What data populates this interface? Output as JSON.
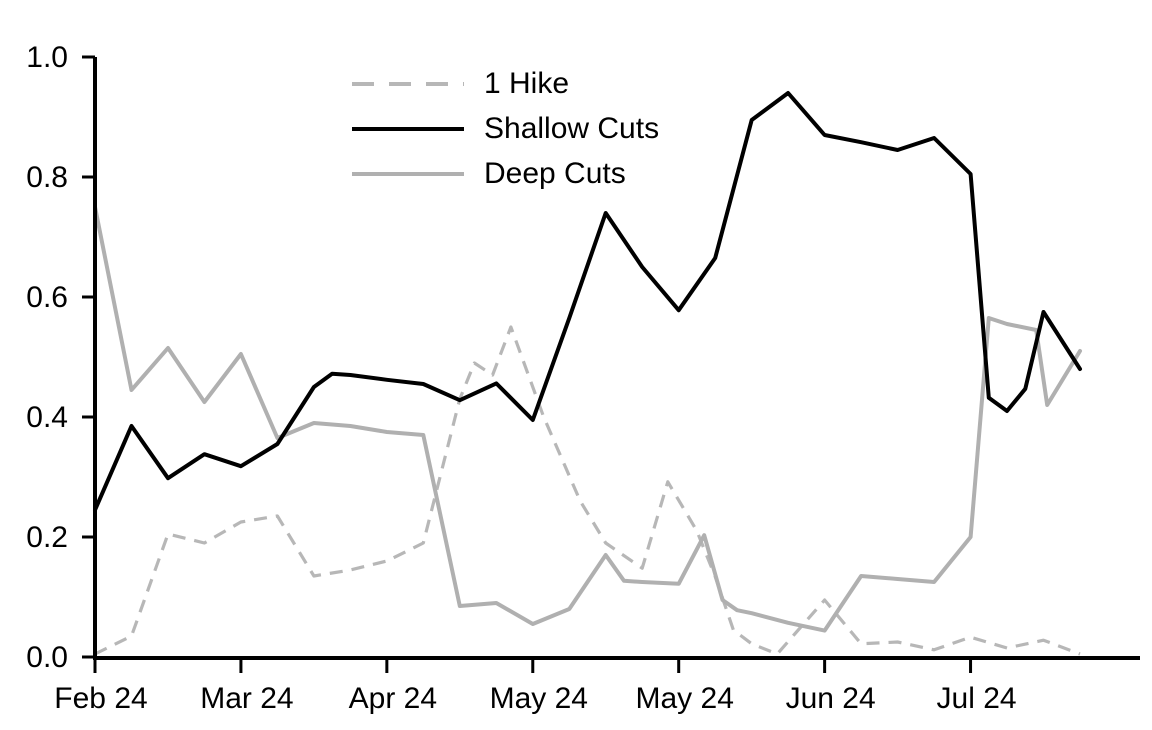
{
  "chart_data": {
    "type": "line",
    "title": "",
    "xlabel": "",
    "ylabel": "",
    "grid": false,
    "legend_position": "top-left-inside",
    "x_unit": "weeks since first observation (Feb 2024 - Aug 2024)",
    "xlim": [
      0,
      27
    ],
    "ylim": [
      0.0,
      1.0
    ],
    "y_ticks": [
      {
        "value": 0.0,
        "label": "0.0"
      },
      {
        "value": 0.2,
        "label": "0.2"
      },
      {
        "value": 0.4,
        "label": "0.4"
      },
      {
        "value": 0.6,
        "label": "0.6"
      },
      {
        "value": 0.8,
        "label": "0.8"
      },
      {
        "value": 1.0,
        "label": "1.0"
      }
    ],
    "x_ticks": [
      {
        "pos": 0,
        "label": "Feb 24"
      },
      {
        "pos": 4,
        "label": "Mar 24"
      },
      {
        "pos": 8,
        "label": "Apr 24"
      },
      {
        "pos": 12,
        "label": "May 24"
      },
      {
        "pos": 16,
        "label": "May 24"
      },
      {
        "pos": 20,
        "label": "Jun 24"
      },
      {
        "pos": 24,
        "label": "Jul 24"
      }
    ],
    "series": [
      {
        "name": "1 Hike",
        "style": "dashed",
        "color": "#b7b7b7",
        "points": [
          [
            0,
            0.005
          ],
          [
            1,
            0.035
          ],
          [
            2,
            0.205
          ],
          [
            3,
            0.19
          ],
          [
            4,
            0.225
          ],
          [
            5,
            0.235
          ],
          [
            6,
            0.135
          ],
          [
            7,
            0.145
          ],
          [
            8,
            0.16
          ],
          [
            9,
            0.19
          ],
          [
            10,
            0.43
          ],
          [
            10.4,
            0.49
          ],
          [
            10.9,
            0.47
          ],
          [
            11.4,
            0.55
          ],
          [
            12.3,
            0.4
          ],
          [
            13.3,
            0.26
          ],
          [
            14,
            0.19
          ],
          [
            15,
            0.148
          ],
          [
            15.7,
            0.292
          ],
          [
            16.5,
            0.21
          ],
          [
            17,
            0.134
          ],
          [
            17.5,
            0.045
          ],
          [
            18,
            0.022
          ],
          [
            18.7,
            0.005
          ],
          [
            20,
            0.095
          ],
          [
            21,
            0.022
          ],
          [
            22,
            0.025
          ],
          [
            23,
            0.012
          ],
          [
            24,
            0.033
          ],
          [
            25,
            0.015
          ],
          [
            26,
            0.028
          ],
          [
            27,
            0.005
          ]
        ]
      },
      {
        "name": "Shallow Cuts",
        "style": "solid",
        "color": "#000000",
        "points": [
          [
            0,
            0.245
          ],
          [
            1,
            0.385
          ],
          [
            2,
            0.298
          ],
          [
            3,
            0.338
          ],
          [
            4,
            0.318
          ],
          [
            5,
            0.355
          ],
          [
            6,
            0.45
          ],
          [
            6.5,
            0.472
          ],
          [
            7,
            0.47
          ],
          [
            8,
            0.462
          ],
          [
            9,
            0.455
          ],
          [
            10,
            0.428
          ],
          [
            11,
            0.456
          ],
          [
            12,
            0.395
          ],
          [
            13,
            0.565
          ],
          [
            14,
            0.74
          ],
          [
            15,
            0.65
          ],
          [
            16,
            0.578
          ],
          [
            17,
            0.665
          ],
          [
            18,
            0.895
          ],
          [
            19,
            0.94
          ],
          [
            20,
            0.87
          ],
          [
            21,
            0.858
          ],
          [
            22,
            0.845
          ],
          [
            23,
            0.865
          ],
          [
            24,
            0.805
          ],
          [
            24.5,
            0.432
          ],
          [
            25,
            0.41
          ],
          [
            25.5,
            0.447
          ],
          [
            26,
            0.575
          ],
          [
            27,
            0.48
          ]
        ]
      },
      {
        "name": "Deep Cuts",
        "style": "solid",
        "color": "#b0b0b0",
        "points": [
          [
            0,
            0.75
          ],
          [
            1,
            0.445
          ],
          [
            2,
            0.515
          ],
          [
            3,
            0.425
          ],
          [
            4,
            0.505
          ],
          [
            5,
            0.365
          ],
          [
            6,
            0.39
          ],
          [
            7,
            0.385
          ],
          [
            8,
            0.375
          ],
          [
            9,
            0.37
          ],
          [
            10,
            0.085
          ],
          [
            11,
            0.09
          ],
          [
            12,
            0.055
          ],
          [
            13,
            0.08
          ],
          [
            14,
            0.17
          ],
          [
            14.5,
            0.127
          ],
          [
            15,
            0.125
          ],
          [
            16,
            0.122
          ],
          [
            16.7,
            0.203
          ],
          [
            17.2,
            0.095
          ],
          [
            17.6,
            0.078
          ],
          [
            18,
            0.073
          ],
          [
            19,
            0.057
          ],
          [
            20,
            0.044
          ],
          [
            21,
            0.135
          ],
          [
            22,
            0.13
          ],
          [
            23,
            0.125
          ],
          [
            24,
            0.2
          ],
          [
            24.5,
            0.565
          ],
          [
            25,
            0.555
          ],
          [
            25.8,
            0.545
          ],
          [
            26.1,
            0.42
          ],
          [
            27,
            0.51
          ]
        ]
      }
    ],
    "legend_order": [
      "1 Hike",
      "Shallow Cuts",
      "Deep Cuts"
    ]
  }
}
